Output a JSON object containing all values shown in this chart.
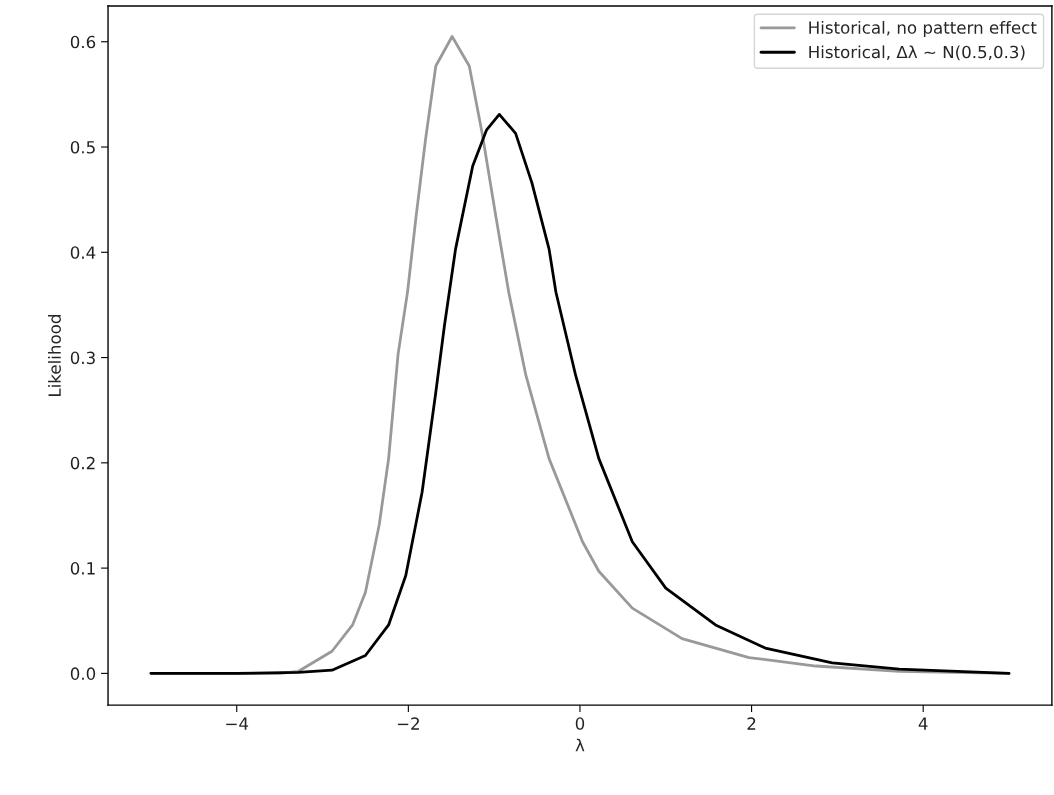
{
  "chart_data": {
    "type": "line",
    "xlabel": "λ",
    "ylabel": "Likelihood",
    "xlim": [
      -5.5,
      5.5
    ],
    "xticks": [
      {
        "value": -4,
        "label": "−4"
      },
      {
        "value": -2,
        "label": "−2"
      },
      0,
      2,
      4
    ],
    "ylim": [
      -0.0302,
      0.634
    ],
    "yticks": [
      {
        "value": 0,
        "label": "0.0"
      },
      0.1,
      0.2,
      0.3,
      0.4,
      0.5,
      0.6
    ],
    "grid": false,
    "legend": "top right",
    "marker": "none",
    "line_style": "solid",
    "series": [
      {
        "name": "Historical, no pattern effect",
        "color": "#999999",
        "x": [
          -5,
          -4,
          -3.5,
          -3.28,
          -2.89,
          -2.65,
          -2.5,
          -2.34,
          -2.23,
          -2.12,
          -2.01,
          -1.91,
          -1.8,
          -1.68,
          -1.49,
          -1.29,
          -1.14,
          -0.98,
          -0.83,
          -0.63,
          -0.36,
          0.03,
          0.22,
          0.61,
          1.19,
          1.97,
          2.75,
          3.72,
          5
        ],
        "values": [
          0,
          0,
          0,
          0.002,
          0.021,
          0.046,
          0.077,
          0.141,
          0.204,
          0.303,
          0.362,
          0.434,
          0.507,
          0.577,
          0.605,
          0.577,
          0.513,
          0.434,
          0.362,
          0.283,
          0.204,
          0.125,
          0.097,
          0.062,
          0.033,
          0.015,
          0.007,
          0.002,
          0
        ]
      },
      {
        "name": "Historical, Δλ ~ N(0.5,0.3)",
        "color": "#000000",
        "x": [
          -5,
          -4,
          -3.28,
          -2.89,
          -2.5,
          -2.23,
          -2.03,
          -1.84,
          -1.68,
          -1.58,
          -1.45,
          -1.25,
          -1.09,
          -0.94,
          -0.75,
          -0.56,
          -0.36,
          -0.28,
          -0.05,
          0.22,
          0.61,
          1.0,
          1.58,
          2.16,
          2.94,
          3.72,
          5
        ],
        "values": [
          0,
          0,
          0.001,
          0.003,
          0.017,
          0.046,
          0.093,
          0.172,
          0.267,
          0.33,
          0.403,
          0.482,
          0.516,
          0.531,
          0.513,
          0.466,
          0.403,
          0.362,
          0.283,
          0.204,
          0.125,
          0.081,
          0.046,
          0.024,
          0.01,
          0.004,
          0
        ]
      }
    ]
  }
}
